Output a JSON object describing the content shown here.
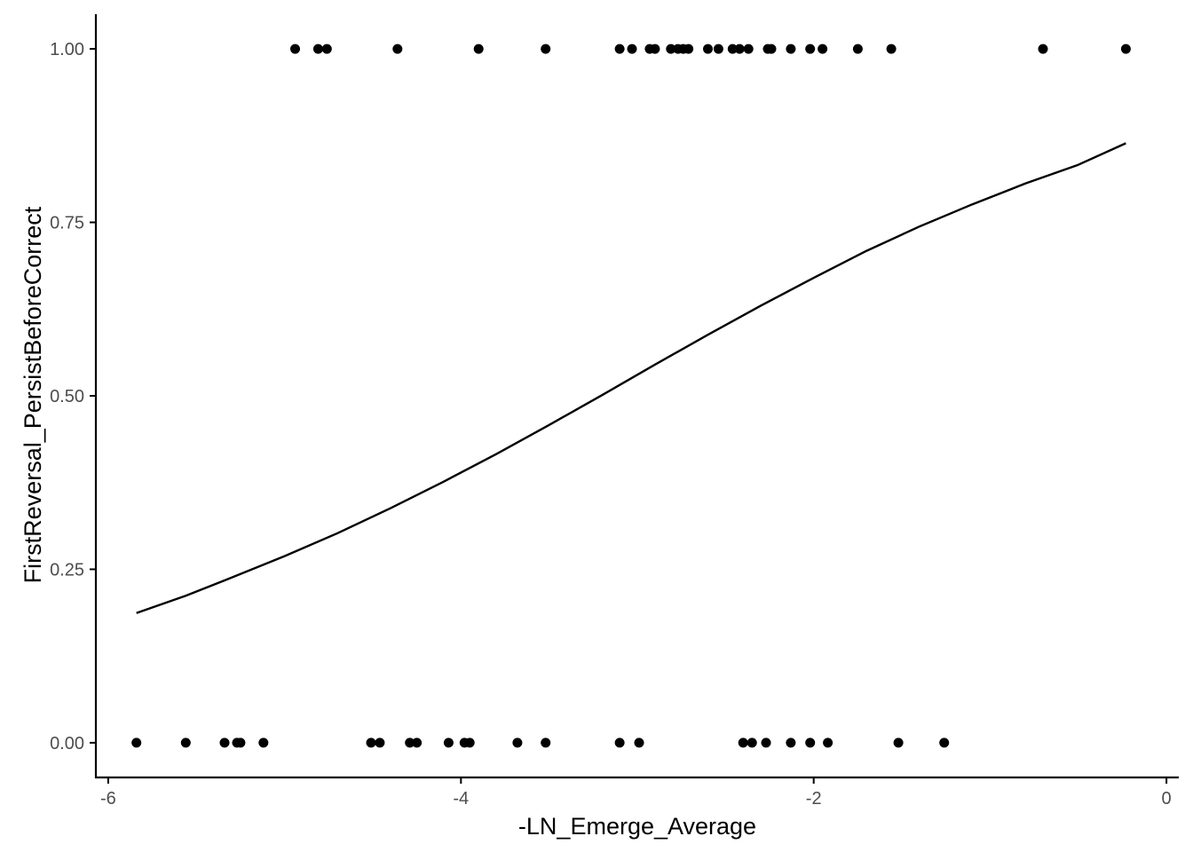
{
  "chart_data": {
    "type": "scatter",
    "xlabel": "-LN_Emerge_Average",
    "ylabel": "FirstReversal_PersistBeforeCorrect",
    "xlim": [
      -6.07,
      0.07
    ],
    "ylim": [
      -0.05,
      1.05
    ],
    "x_ticks": [
      -6,
      -4,
      -2,
      0
    ],
    "x_tick_labels": [
      "-6",
      "-4",
      "-2",
      "0"
    ],
    "y_ticks": [
      0,
      0.25,
      0.5,
      0.75,
      1
    ],
    "y_tick_labels": [
      "0.00",
      "0.25",
      "0.50",
      "0.75",
      "1.00"
    ],
    "grid": false,
    "legend": "none",
    "colors": {
      "points": "#000000",
      "curve": "#000000",
      "axes": "#000000",
      "tick_labels": "#4d4d4d",
      "background": "#ffffff"
    },
    "series": [
      {
        "kind": "points",
        "y": 1,
        "x": [
          -4.94,
          -4.81,
          -4.76,
          -4.36,
          -3.9,
          -3.52,
          -3.1,
          -3.03,
          -2.93,
          -2.9,
          -2.81,
          -2.77,
          -2.74,
          -2.71,
          -2.6,
          -2.54,
          -2.46,
          -2.42,
          -2.37,
          -2.26,
          -2.24,
          -2.13,
          -2.02,
          -1.95,
          -1.75,
          -1.56,
          -0.7,
          -0.23
        ]
      },
      {
        "kind": "points",
        "y": 0,
        "x": [
          -5.84,
          -5.56,
          -5.34,
          -5.27,
          -5.25,
          -5.12,
          -4.51,
          -4.46,
          -4.29,
          -4.25,
          -4.07,
          -3.98,
          -3.95,
          -3.68,
          -3.52,
          -3.1,
          -2.99,
          -2.4,
          -2.35,
          -2.27,
          -2.13,
          -2.02,
          -1.92,
          -1.52,
          -1.26
        ]
      },
      {
        "kind": "curve",
        "x": [
          -5.84,
          -5.56,
          -5.3,
          -5.0,
          -4.7,
          -4.4,
          -4.1,
          -3.8,
          -3.5,
          -3.2,
          -2.9,
          -2.6,
          -2.3,
          -2.0,
          -1.7,
          -1.4,
          -1.1,
          -0.8,
          -0.5,
          -0.23
        ],
        "y": [
          0.187,
          0.212,
          0.238,
          0.269,
          0.302,
          0.338,
          0.376,
          0.416,
          0.458,
          0.501,
          0.545,
          0.588,
          0.63,
          0.67,
          0.709,
          0.744,
          0.776,
          0.806,
          0.833,
          0.864
        ]
      }
    ]
  }
}
